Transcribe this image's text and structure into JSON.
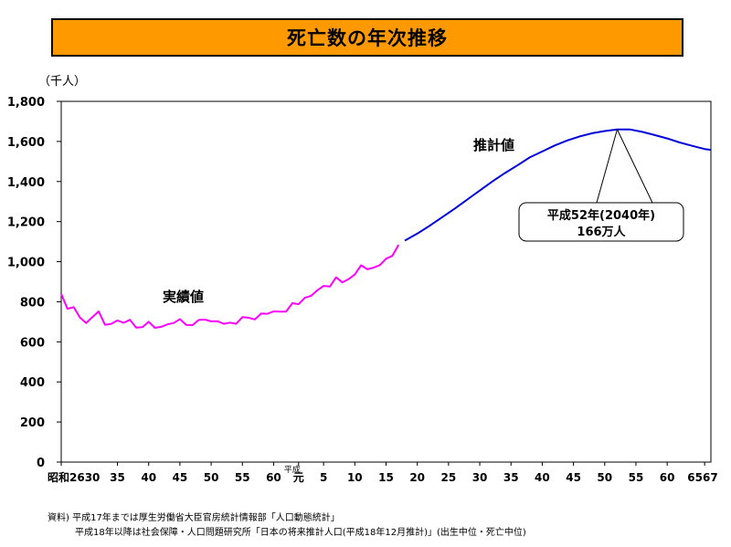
{
  "chart_data": {
    "type": "line",
    "title": "死亡数の年次推移",
    "unit_label": "（千人）",
    "ylim": [
      0,
      1800
    ],
    "yticks": [
      0,
      200,
      400,
      600,
      800,
      1000,
      1200,
      1400,
      1600,
      1800
    ],
    "ytick_labels": [
      "0",
      "200",
      "400",
      "600",
      "800",
      "1,000",
      "1,200",
      "1,400",
      "1,600",
      "1,800"
    ],
    "x_axis": {
      "start_year": 1951,
      "end_year": 2055,
      "ticks": [
        {
          "year": 1951,
          "label": "昭和2630"
        },
        {
          "year": 1960,
          "label": "35"
        },
        {
          "year": 1965,
          "label": "40"
        },
        {
          "year": 1970,
          "label": "45"
        },
        {
          "year": 1975,
          "label": "50"
        },
        {
          "year": 1980,
          "label": "55"
        },
        {
          "year": 1985,
          "label": "60"
        },
        {
          "year": 1989,
          "label": "元"
        },
        {
          "year": 1993,
          "label": "5"
        },
        {
          "year": 1998,
          "label": "10"
        },
        {
          "year": 2003,
          "label": "15"
        },
        {
          "year": 2008,
          "label": "20"
        },
        {
          "year": 2013,
          "label": "25"
        },
        {
          "year": 2018,
          "label": "30"
        },
        {
          "year": 2023,
          "label": "35"
        },
        {
          "year": 2028,
          "label": "40"
        },
        {
          "year": 2033,
          "label": "45"
        },
        {
          "year": 2038,
          "label": "50"
        },
        {
          "year": 2043,
          "label": "55"
        },
        {
          "year": 2048,
          "label": "60"
        },
        {
          "year": 2054,
          "label": "6567"
        }
      ],
      "heisei_label": "平成"
    },
    "series": [
      {
        "name": "実績値",
        "color": "#ff00ff",
        "x": [
          1951,
          1952,
          1953,
          1954,
          1955,
          1956,
          1957,
          1958,
          1959,
          1960,
          1961,
          1962,
          1963,
          1964,
          1965,
          1966,
          1967,
          1968,
          1969,
          1970,
          1971,
          1972,
          1973,
          1974,
          1975,
          1976,
          1977,
          1978,
          1979,
          1980,
          1981,
          1982,
          1983,
          1984,
          1985,
          1986,
          1987,
          1988,
          1989,
          1990,
          1991,
          1992,
          1993,
          1994,
          1995,
          1996,
          1997,
          1998,
          1999,
          2000,
          2001,
          2002,
          2003,
          2004,
          2005
        ],
        "y": [
          839,
          765,
          773,
          721,
          694,
          724,
          752,
          685,
          690,
          707,
          695,
          710,
          671,
          673,
          700,
          670,
          675,
          687,
          694,
          713,
          685,
          683,
          709,
          711,
          702,
          703,
          690,
          696,
          690,
          723,
          720,
          712,
          741,
          740,
          752,
          751,
          751,
          793,
          788,
          820,
          830,
          857,
          879,
          876,
          922,
          897,
          913,
          936,
          982,
          962,
          970,
          983,
          1015,
          1029,
          1084
        ]
      },
      {
        "name": "推計値",
        "color": "#0000dd",
        "x": [
          2006,
          2008,
          2010,
          2012,
          2014,
          2016,
          2018,
          2020,
          2022,
          2024,
          2026,
          2028,
          2030,
          2032,
          2034,
          2036,
          2038,
          2040,
          2042,
          2044,
          2046,
          2048,
          2050,
          2052,
          2054,
          2055
        ],
        "y": [
          1105,
          1140,
          1180,
          1222,
          1265,
          1310,
          1355,
          1400,
          1442,
          1480,
          1520,
          1550,
          1580,
          1605,
          1625,
          1641,
          1652,
          1660,
          1660,
          1648,
          1632,
          1615,
          1595,
          1578,
          1562,
          1558
        ]
      }
    ],
    "annotations": [
      {
        "text": "実績値"
      },
      {
        "text": "推計値"
      },
      {
        "text": "平成52年(2040年)",
        "text2": "166万人",
        "target_year": 2040,
        "target_value": 1660
      }
    ]
  },
  "source": {
    "line1": "資料) 平成17年までは厚生労働省大臣官房統計情報部「人口動態統計」",
    "line2": "平成18年以降は社会保障・人口問題研究所「日本の将来推計人口(平成18年12月推計)」(出生中位・死亡中位)"
  }
}
